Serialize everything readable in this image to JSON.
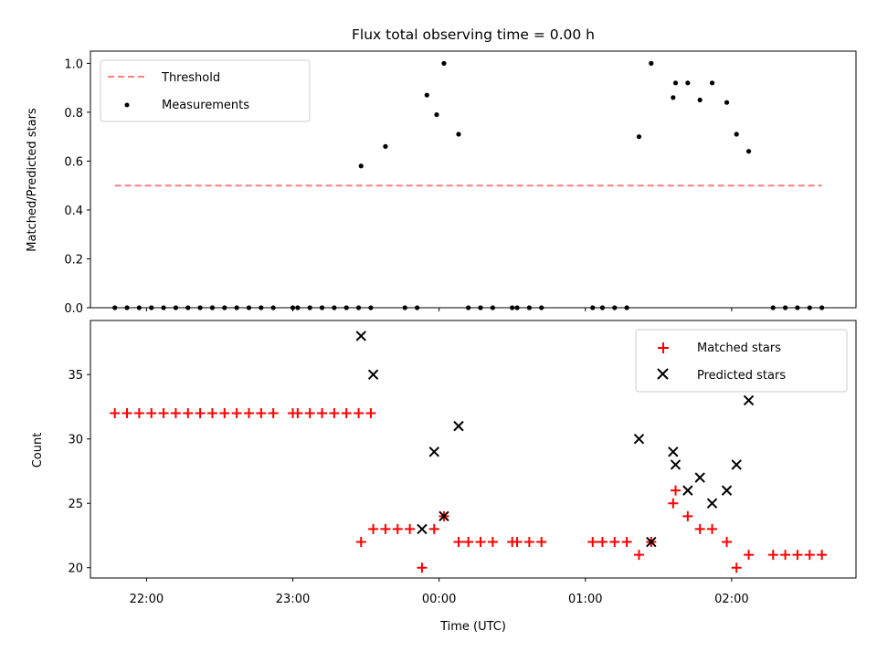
{
  "title": "Flux total observing time = 0.00 h",
  "colors": {
    "threshold": "#ff7f7f",
    "measurement": "#000000",
    "matched": "#ff0000",
    "predicted": "#000000"
  },
  "chart_data": [
    {
      "type": "scatter",
      "ylabel": "Matched/Predicted stars",
      "ylim": [
        0,
        1.05
      ],
      "yticks": [
        "0.0",
        "0.2",
        "0.4",
        "0.6",
        "0.8",
        "1.0"
      ],
      "ytick_values": [
        0,
        0.2,
        0.4,
        0.6,
        0.8,
        1.0
      ],
      "x_min": "21:37",
      "x_max": "02:51",
      "grid": false,
      "legend_position": "top-left",
      "legend": [
        "Threshold",
        "Measurements"
      ],
      "threshold": {
        "name": "Threshold",
        "value": 0.5,
        "x_start": "21:47",
        "x_end": "02:37"
      },
      "measurements": {
        "name": "Measurements",
        "points": [
          [
            "21:47",
            0
          ],
          [
            "21:52",
            0
          ],
          [
            "21:57",
            0
          ],
          [
            "22:02",
            0
          ],
          [
            "22:07",
            0
          ],
          [
            "22:12",
            0
          ],
          [
            "22:17",
            0
          ],
          [
            "22:22",
            0
          ],
          [
            "22:27",
            0
          ],
          [
            "22:32",
            0
          ],
          [
            "22:37",
            0
          ],
          [
            "22:42",
            0
          ],
          [
            "22:47",
            0
          ],
          [
            "22:52",
            0
          ],
          [
            "23:00",
            0
          ],
          [
            "23:02",
            0
          ],
          [
            "23:07",
            0
          ],
          [
            "23:12",
            0
          ],
          [
            "23:17",
            0
          ],
          [
            "23:22",
            0
          ],
          [
            "23:27",
            0
          ],
          [
            "23:32",
            0
          ],
          [
            "23:28",
            0.58
          ],
          [
            "23:38",
            0.66
          ],
          [
            "23:46",
            0
          ],
          [
            "23:51",
            0
          ],
          [
            "23:55",
            0.87
          ],
          [
            "23:59",
            0.79
          ],
          [
            "00:02",
            1.0
          ],
          [
            "00:08",
            0.71
          ],
          [
            "00:12",
            0
          ],
          [
            "00:17",
            0
          ],
          [
            "00:22",
            0
          ],
          [
            "00:30",
            0
          ],
          [
            "00:32",
            0
          ],
          [
            "00:37",
            0
          ],
          [
            "00:42",
            0
          ],
          [
            "01:03",
            0
          ],
          [
            "01:07",
            0
          ],
          [
            "01:12",
            0
          ],
          [
            "01:17",
            0
          ],
          [
            "01:22",
            0.7
          ],
          [
            "01:27",
            1.0
          ],
          [
            "01:36",
            0.86
          ],
          [
            "01:37",
            0.92
          ],
          [
            "01:42",
            0.92
          ],
          [
            "01:47",
            0.85
          ],
          [
            "01:52",
            0.92
          ],
          [
            "01:58",
            0.84
          ],
          [
            "02:02",
            0.71
          ],
          [
            "02:07",
            0.64
          ],
          [
            "02:17",
            0
          ],
          [
            "02:22",
            0
          ],
          [
            "02:27",
            0
          ],
          [
            "02:32",
            0
          ],
          [
            "02:37",
            0
          ]
        ]
      }
    },
    {
      "type": "scatter",
      "xlabel": "Time (UTC)",
      "ylabel": "Count",
      "ylim": [
        19.2,
        39.2
      ],
      "yticks": [
        "20",
        "25",
        "30",
        "35"
      ],
      "ytick_values": [
        20,
        25,
        30,
        35
      ],
      "xticks": [
        "22:00",
        "23:00",
        "00:00",
        "01:00",
        "02:00"
      ],
      "xtick_values": [
        "22:00",
        "23:00",
        "00:00",
        "01:00",
        "02:00"
      ],
      "x_min": "21:37",
      "x_max": "02:51",
      "grid": false,
      "legend_position": "top-right",
      "legend": [
        "Matched stars",
        "Predicted stars"
      ],
      "matched_stars": {
        "name": "Matched stars",
        "points": [
          [
            "21:47",
            32
          ],
          [
            "21:52",
            32
          ],
          [
            "21:57",
            32
          ],
          [
            "22:02",
            32
          ],
          [
            "22:07",
            32
          ],
          [
            "22:12",
            32
          ],
          [
            "22:17",
            32
          ],
          [
            "22:22",
            32
          ],
          [
            "22:27",
            32
          ],
          [
            "22:32",
            32
          ],
          [
            "22:37",
            32
          ],
          [
            "22:42",
            32
          ],
          [
            "22:47",
            32
          ],
          [
            "22:52",
            32
          ],
          [
            "23:00",
            32
          ],
          [
            "23:02",
            32
          ],
          [
            "23:07",
            32
          ],
          [
            "23:12",
            32
          ],
          [
            "23:17",
            32
          ],
          [
            "23:22",
            32
          ],
          [
            "23:27",
            32
          ],
          [
            "23:32",
            32
          ],
          [
            "23:28",
            22
          ],
          [
            "23:33",
            23
          ],
          [
            "23:38",
            23
          ],
          [
            "23:43",
            23
          ],
          [
            "23:48",
            23
          ],
          [
            "23:53",
            20
          ],
          [
            "23:58",
            23
          ],
          [
            "00:02",
            24
          ],
          [
            "00:08",
            22
          ],
          [
            "00:12",
            22
          ],
          [
            "00:17",
            22
          ],
          [
            "00:22",
            22
          ],
          [
            "00:30",
            22
          ],
          [
            "00:32",
            22
          ],
          [
            "00:37",
            22
          ],
          [
            "00:42",
            22
          ],
          [
            "01:03",
            22
          ],
          [
            "01:07",
            22
          ],
          [
            "01:12",
            22
          ],
          [
            "01:17",
            22
          ],
          [
            "01:22",
            21
          ],
          [
            "01:27",
            22
          ],
          [
            "01:36",
            25
          ],
          [
            "01:37",
            26
          ],
          [
            "01:42",
            24
          ],
          [
            "01:47",
            23
          ],
          [
            "01:52",
            23
          ],
          [
            "01:58",
            22
          ],
          [
            "02:02",
            20
          ],
          [
            "02:07",
            21
          ],
          [
            "02:17",
            21
          ],
          [
            "02:22",
            21
          ],
          [
            "02:27",
            21
          ],
          [
            "02:32",
            21
          ],
          [
            "02:37",
            21
          ]
        ]
      },
      "predicted_stars": {
        "name": "Predicted stars",
        "points": [
          [
            "23:28",
            38
          ],
          [
            "23:33",
            35
          ],
          [
            "23:53",
            23
          ],
          [
            "23:58",
            29
          ],
          [
            "00:02",
            24
          ],
          [
            "00:08",
            31
          ],
          [
            "01:22",
            30
          ],
          [
            "01:27",
            22
          ],
          [
            "01:36",
            29
          ],
          [
            "01:37",
            28
          ],
          [
            "01:42",
            26
          ],
          [
            "01:47",
            27
          ],
          [
            "01:52",
            25
          ],
          [
            "01:58",
            26
          ],
          [
            "02:02",
            28
          ],
          [
            "02:07",
            33
          ]
        ]
      }
    }
  ]
}
